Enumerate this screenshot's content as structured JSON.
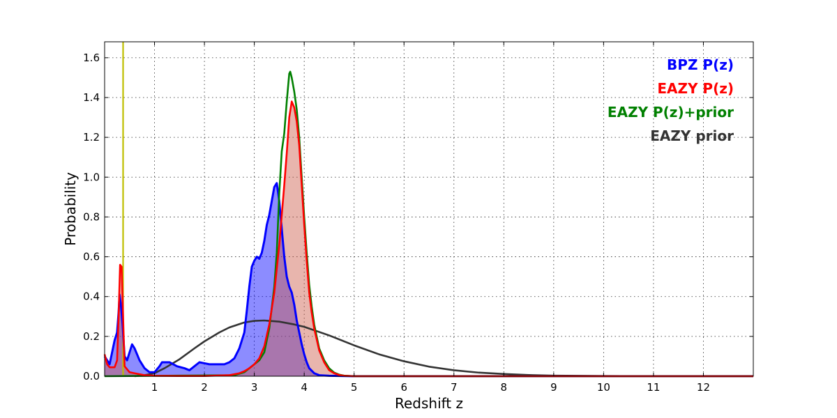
{
  "chart_data": {
    "type": "area",
    "title": "",
    "xlabel": "Redshift z",
    "ylabel": "Probability",
    "xlim": [
      0,
      13
    ],
    "ylim": [
      0,
      1.68
    ],
    "xticks": [
      1,
      2,
      3,
      4,
      5,
      6,
      7,
      8,
      9,
      10,
      11,
      12
    ],
    "yticks": [
      0.0,
      0.2,
      0.4,
      0.6,
      0.8,
      1.0,
      1.2,
      1.4,
      1.6
    ],
    "grid": true,
    "legend_placement": "top-right",
    "vline": {
      "x": 0.37,
      "color": "#bfbf00"
    },
    "series": [
      {
        "name": "BPZ P(z)",
        "color": "#0000ff",
        "fill": "#0000ff",
        "filled": true,
        "points": [
          [
            0.0,
            0.1
          ],
          [
            0.1,
            0.06
          ],
          [
            0.15,
            0.12
          ],
          [
            0.2,
            0.18
          ],
          [
            0.25,
            0.22
          ],
          [
            0.28,
            0.32
          ],
          [
            0.3,
            0.41
          ],
          [
            0.33,
            0.35
          ],
          [
            0.36,
            0.26
          ],
          [
            0.4,
            0.1
          ],
          [
            0.45,
            0.08
          ],
          [
            0.5,
            0.12
          ],
          [
            0.55,
            0.16
          ],
          [
            0.6,
            0.14
          ],
          [
            0.7,
            0.08
          ],
          [
            0.8,
            0.04
          ],
          [
            0.9,
            0.02
          ],
          [
            1.0,
            0.02
          ],
          [
            1.1,
            0.05
          ],
          [
            1.15,
            0.07
          ],
          [
            1.3,
            0.07
          ],
          [
            1.45,
            0.05
          ],
          [
            1.6,
            0.04
          ],
          [
            1.7,
            0.03
          ],
          [
            1.8,
            0.05
          ],
          [
            1.9,
            0.07
          ],
          [
            2.0,
            0.065
          ],
          [
            2.1,
            0.06
          ],
          [
            2.2,
            0.06
          ],
          [
            2.3,
            0.06
          ],
          [
            2.4,
            0.06
          ],
          [
            2.5,
            0.07
          ],
          [
            2.6,
            0.09
          ],
          [
            2.7,
            0.14
          ],
          [
            2.8,
            0.22
          ],
          [
            2.85,
            0.33
          ],
          [
            2.9,
            0.45
          ],
          [
            2.95,
            0.55
          ],
          [
            3.0,
            0.58
          ],
          [
            3.05,
            0.6
          ],
          [
            3.1,
            0.59
          ],
          [
            3.15,
            0.62
          ],
          [
            3.2,
            0.68
          ],
          [
            3.25,
            0.76
          ],
          [
            3.3,
            0.81
          ],
          [
            3.35,
            0.88
          ],
          [
            3.4,
            0.95
          ],
          [
            3.45,
            0.97
          ],
          [
            3.5,
            0.88
          ],
          [
            3.55,
            0.74
          ],
          [
            3.6,
            0.6
          ],
          [
            3.65,
            0.5
          ],
          [
            3.7,
            0.45
          ],
          [
            3.75,
            0.42
          ],
          [
            3.8,
            0.36
          ],
          [
            3.85,
            0.28
          ],
          [
            3.9,
            0.22
          ],
          [
            3.95,
            0.16
          ],
          [
            4.0,
            0.11
          ],
          [
            4.05,
            0.07
          ],
          [
            4.1,
            0.04
          ],
          [
            4.2,
            0.015
          ],
          [
            4.3,
            0.005
          ],
          [
            4.5,
            0.002
          ],
          [
            5.0,
            0.0
          ],
          [
            13.0,
            0.0
          ]
        ]
      },
      {
        "name": "EAZY P(z)",
        "color": "#ff0000",
        "fill": "#cd5c4a",
        "filled": true,
        "points": [
          [
            0.0,
            0.11
          ],
          [
            0.05,
            0.06
          ],
          [
            0.1,
            0.045
          ],
          [
            0.2,
            0.045
          ],
          [
            0.25,
            0.08
          ],
          [
            0.28,
            0.3
          ],
          [
            0.31,
            0.56
          ],
          [
            0.34,
            0.55
          ],
          [
            0.37,
            0.3
          ],
          [
            0.4,
            0.05
          ],
          [
            0.5,
            0.02
          ],
          [
            0.6,
            0.015
          ],
          [
            0.8,
            0.005
          ],
          [
            1.0,
            0.002
          ],
          [
            1.5,
            0.001
          ],
          [
            2.0,
            0.001
          ],
          [
            2.5,
            0.005
          ],
          [
            2.7,
            0.015
          ],
          [
            2.8,
            0.025
          ],
          [
            2.9,
            0.04
          ],
          [
            3.0,
            0.06
          ],
          [
            3.1,
            0.09
          ],
          [
            3.2,
            0.15
          ],
          [
            3.3,
            0.26
          ],
          [
            3.4,
            0.42
          ],
          [
            3.5,
            0.66
          ],
          [
            3.6,
            0.96
          ],
          [
            3.65,
            1.12
          ],
          [
            3.7,
            1.3
          ],
          [
            3.75,
            1.38
          ],
          [
            3.8,
            1.35
          ],
          [
            3.85,
            1.28
          ],
          [
            3.9,
            1.16
          ],
          [
            3.95,
            0.96
          ],
          [
            4.0,
            0.76
          ],
          [
            4.05,
            0.58
          ],
          [
            4.1,
            0.42
          ],
          [
            4.15,
            0.32
          ],
          [
            4.2,
            0.24
          ],
          [
            4.3,
            0.13
          ],
          [
            4.4,
            0.07
          ],
          [
            4.5,
            0.03
          ],
          [
            4.6,
            0.015
          ],
          [
            4.7,
            0.006
          ],
          [
            4.8,
            0.002
          ],
          [
            5.0,
            0.0
          ],
          [
            13.0,
            0.0
          ]
        ]
      },
      {
        "name": "EAZY P(z)+prior",
        "color": "#008000",
        "filled": false,
        "points": [
          [
            0.0,
            0.0
          ],
          [
            2.6,
            0.005
          ],
          [
            2.8,
            0.02
          ],
          [
            2.9,
            0.04
          ],
          [
            3.0,
            0.06
          ],
          [
            3.1,
            0.08
          ],
          [
            3.2,
            0.12
          ],
          [
            3.3,
            0.24
          ],
          [
            3.4,
            0.45
          ],
          [
            3.45,
            0.62
          ],
          [
            3.5,
            0.92
          ],
          [
            3.55,
            1.13
          ],
          [
            3.6,
            1.22
          ],
          [
            3.65,
            1.38
          ],
          [
            3.7,
            1.52
          ],
          [
            3.72,
            1.53
          ],
          [
            3.75,
            1.5
          ],
          [
            3.8,
            1.43
          ],
          [
            3.85,
            1.34
          ],
          [
            3.9,
            1.2
          ],
          [
            3.95,
            1.0
          ],
          [
            4.0,
            0.8
          ],
          [
            4.05,
            0.62
          ],
          [
            4.1,
            0.46
          ],
          [
            4.15,
            0.35
          ],
          [
            4.2,
            0.26
          ],
          [
            4.3,
            0.14
          ],
          [
            4.4,
            0.08
          ],
          [
            4.5,
            0.04
          ],
          [
            4.6,
            0.018
          ],
          [
            4.7,
            0.008
          ],
          [
            4.8,
            0.003
          ],
          [
            5.0,
            0.0
          ],
          [
            13.0,
            0.0
          ]
        ]
      },
      {
        "name": "EAZY prior",
        "color": "#333333",
        "filled": false,
        "points": [
          [
            0.6,
            0.0
          ],
          [
            0.8,
            0.005
          ],
          [
            1.0,
            0.015
          ],
          [
            1.2,
            0.04
          ],
          [
            1.5,
            0.085
          ],
          [
            1.8,
            0.14
          ],
          [
            2.0,
            0.175
          ],
          [
            2.3,
            0.22
          ],
          [
            2.5,
            0.245
          ],
          [
            2.8,
            0.27
          ],
          [
            3.0,
            0.278
          ],
          [
            3.2,
            0.28
          ],
          [
            3.5,
            0.274
          ],
          [
            3.8,
            0.26
          ],
          [
            4.0,
            0.248
          ],
          [
            4.5,
            0.205
          ],
          [
            5.0,
            0.155
          ],
          [
            5.5,
            0.11
          ],
          [
            6.0,
            0.075
          ],
          [
            6.5,
            0.048
          ],
          [
            7.0,
            0.03
          ],
          [
            7.5,
            0.018
          ],
          [
            8.0,
            0.011
          ],
          [
            8.5,
            0.006
          ],
          [
            9.0,
            0.003
          ],
          [
            10.0,
            0.001
          ],
          [
            11.0,
            0.0003
          ],
          [
            12.0,
            0.0
          ],
          [
            13.0,
            0.0
          ]
        ]
      }
    ]
  }
}
